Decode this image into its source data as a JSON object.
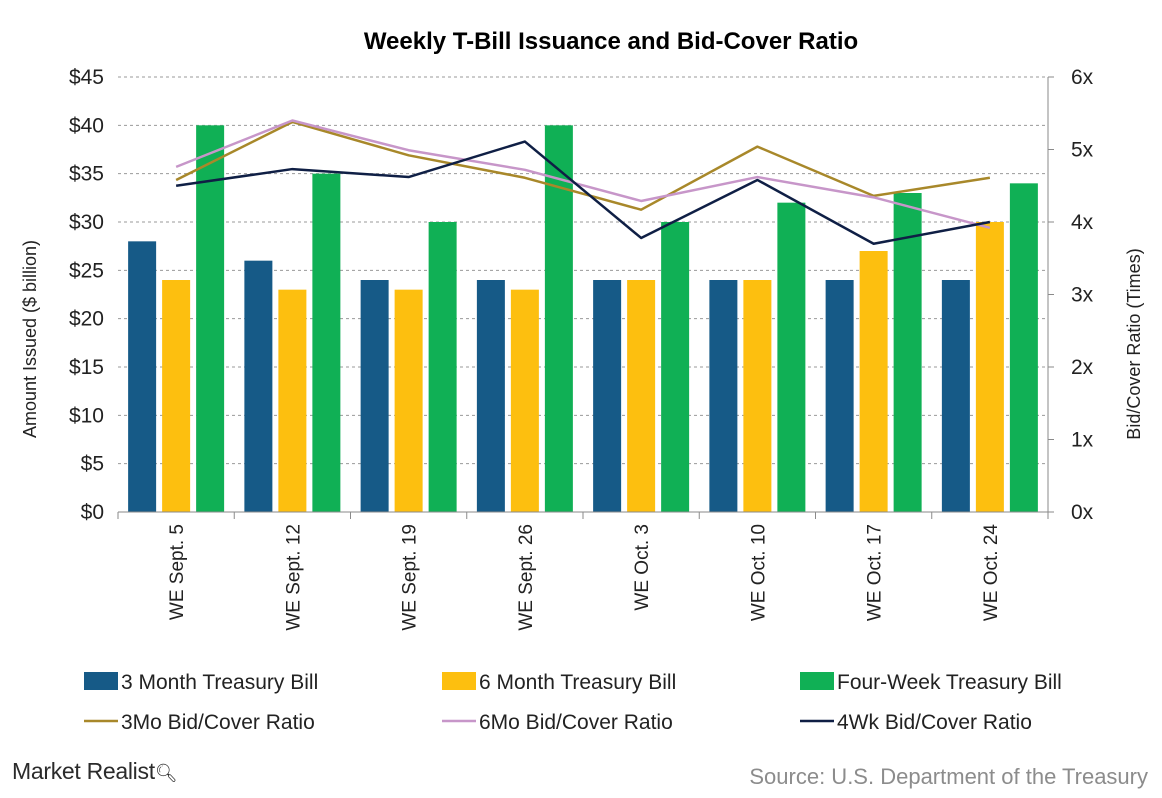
{
  "chart_data": {
    "type": "bar",
    "title": "Weekly T-Bill Issuance and Bid-Cover Ratio",
    "ylabel": "Amount Issued ($ billion)",
    "ylabel_right": "Bid/Cover Ratio (Times)",
    "ylim": [
      0,
      45
    ],
    "ylim_right": [
      0,
      6
    ],
    "yticks": [
      "$0",
      "$5",
      "$10",
      "$15",
      "$20",
      "$25",
      "$30",
      "$35",
      "$40",
      "$45"
    ],
    "yticks_right": [
      "0x",
      "1x",
      "2x",
      "3x",
      "4x",
      "5x",
      "6x"
    ],
    "grid": true,
    "legend_position": "bottom",
    "categories": [
      "WE Sept. 5",
      "WE Sept. 12",
      "WE Sept. 19",
      "WE Sept. 26",
      "WE Oct. 3",
      "WE Oct. 10",
      "WE Oct. 17",
      "WE Oct. 24"
    ],
    "series": [
      {
        "name": "3 Month Treasury Bill",
        "kind": "bar",
        "axis": "left",
        "color": "#165a87",
        "values": [
          28,
          26,
          24,
          24,
          24,
          24,
          24,
          24
        ]
      },
      {
        "name": "6 Month Treasury Bill",
        "kind": "bar",
        "axis": "left",
        "color": "#fdbf0f",
        "values": [
          24,
          23,
          23,
          23,
          24,
          24,
          27,
          30
        ]
      },
      {
        "name": "Four-Week Treasury Bill",
        "kind": "bar",
        "axis": "left",
        "color": "#10b055",
        "values": [
          40,
          35,
          30,
          40,
          30,
          32,
          33,
          34
        ]
      },
      {
        "name": "3Mo Bid/Cover Ratio",
        "kind": "line",
        "axis": "right",
        "color": "#a8882a",
        "values": [
          4.58,
          5.38,
          4.92,
          4.61,
          4.17,
          5.04,
          4.36,
          4.61
        ]
      },
      {
        "name": "6Mo Bid/Cover Ratio",
        "kind": "line",
        "axis": "right",
        "color": "#c796c9",
        "values": [
          4.76,
          5.4,
          4.99,
          4.72,
          4.29,
          4.62,
          4.34,
          3.92
        ]
      },
      {
        "name": "4Wk Bid/Cover Ratio",
        "kind": "line",
        "axis": "right",
        "color": "#0f1f45",
        "values": [
          4.5,
          4.73,
          4.62,
          5.11,
          3.78,
          4.58,
          3.7,
          4.0
        ]
      }
    ]
  },
  "footer": {
    "brand": "Market Realist",
    "brand_icon": "magnifier-chart-icon",
    "source": "Source: U.S. Department of the Treasury"
  }
}
